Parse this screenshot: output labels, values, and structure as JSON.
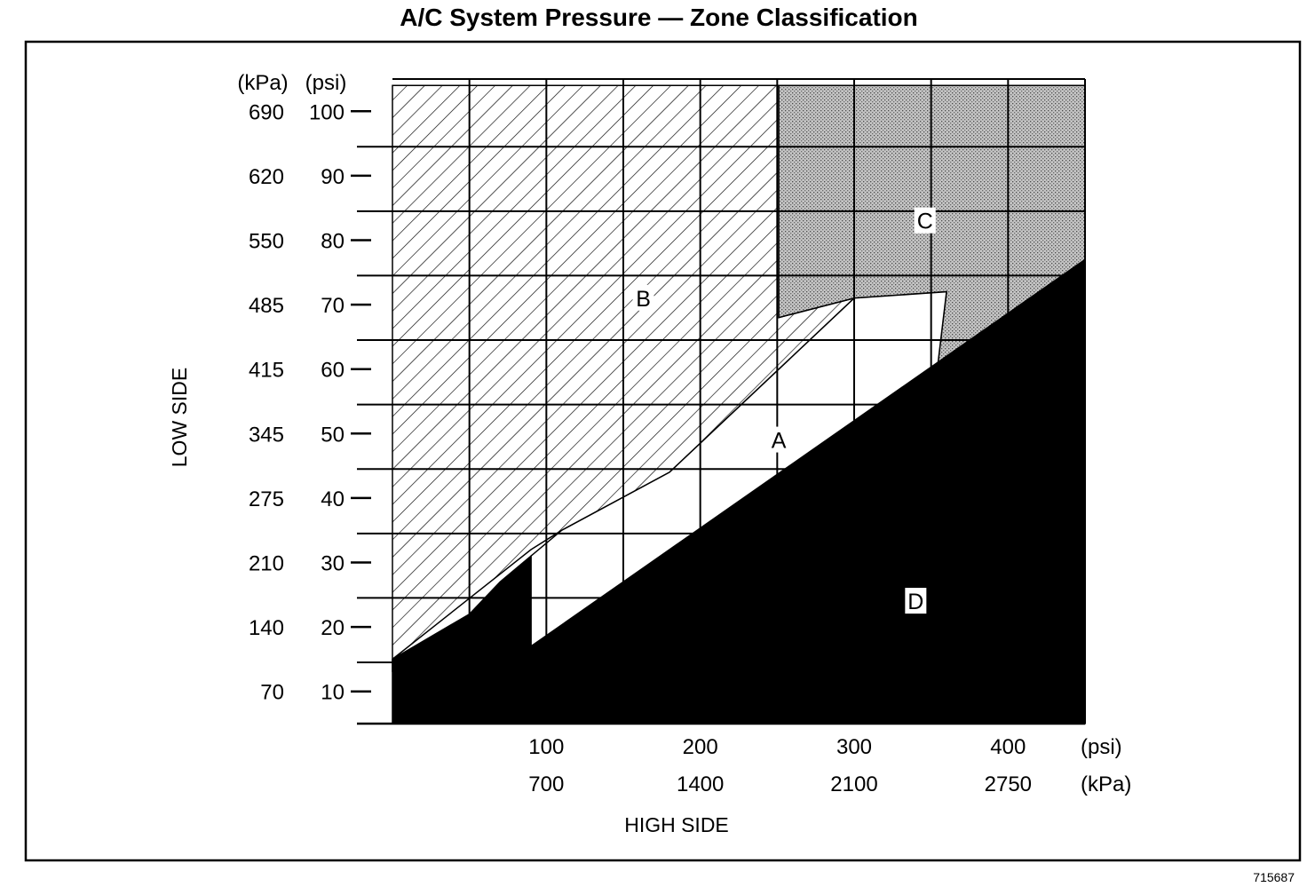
{
  "chart_data": {
    "type": "area",
    "title": "A/C System Pressure — Zone Classification",
    "xlabel": "HIGH SIDE",
    "ylabel": "LOW SIDE",
    "x_unit_primary": "(psi)",
    "x_unit_secondary": "(kPa)",
    "y_unit_primary": "(psi)",
    "y_unit_secondary": "(kPa)",
    "xlim": [
      0,
      450
    ],
    "ylim": [
      5,
      105
    ],
    "x_ticks": [
      {
        "psi": 100,
        "psi_label": "100",
        "kpa_label": "700"
      },
      {
        "psi": 200,
        "psi_label": "200",
        "kpa_label": "1400"
      },
      {
        "psi": 300,
        "psi_label": "300",
        "kpa_label": "2100"
      },
      {
        "psi": 400,
        "psi_label": "400",
        "kpa_label": "2750"
      }
    ],
    "y_ticks": [
      {
        "psi": 100,
        "psi_label": "100",
        "kpa_label": "690"
      },
      {
        "psi": 90,
        "psi_label": "90",
        "kpa_label": "620"
      },
      {
        "psi": 80,
        "psi_label": "80",
        "kpa_label": "550"
      },
      {
        "psi": 70,
        "psi_label": "70",
        "kpa_label": "485"
      },
      {
        "psi": 60,
        "psi_label": "60",
        "kpa_label": "415"
      },
      {
        "psi": 50,
        "psi_label": "50",
        "kpa_label": "345"
      },
      {
        "psi": 40,
        "psi_label": "40",
        "kpa_label": "275"
      },
      {
        "psi": 30,
        "psi_label": "30",
        "kpa_label": "210"
      },
      {
        "psi": 20,
        "psi_label": "20",
        "kpa_label": "140"
      },
      {
        "psi": 10,
        "psi_label": "10",
        "kpa_label": "70"
      }
    ],
    "grid": true,
    "grid_x": [
      50,
      100,
      150,
      200,
      250,
      300,
      350,
      400,
      450
    ],
    "grid_y": [
      14.5,
      24.5,
      34.5,
      44.5,
      54.5,
      64.5,
      74.5,
      84.5,
      94.5
    ],
    "zones": [
      {
        "label": "B",
        "fill": "hatched",
        "label_at": [
          163,
          71
        ],
        "polygon": [
          [
            0,
            13
          ],
          [
            0,
            104
          ],
          [
            251,
            104
          ],
          [
            251,
            68
          ],
          [
            300,
            71
          ],
          [
            180,
            44
          ],
          [
            110,
            35
          ],
          [
            90,
            32
          ],
          [
            0,
            15
          ]
        ]
      },
      {
        "label": "C",
        "fill": "stippled",
        "label_at": [
          346,
          83
        ],
        "polygon": [
          [
            251,
            104
          ],
          [
            450,
            104
          ],
          [
            450,
            77
          ],
          [
            352,
            56
          ],
          [
            360,
            72
          ],
          [
            300,
            71
          ],
          [
            251,
            68
          ]
        ]
      },
      {
        "label": "A",
        "fill": "white",
        "label_at": [
          251,
          49
        ],
        "polygon": [
          [
            90,
            31
          ],
          [
            90,
            17
          ],
          [
            352,
            56
          ],
          [
            360,
            72
          ],
          [
            300,
            71
          ],
          [
            180,
            44
          ],
          [
            110,
            35
          ]
        ]
      },
      {
        "label": "D",
        "fill": "black",
        "label_at": [
          340,
          24
        ],
        "polygon": [
          [
            0,
            5
          ],
          [
            450,
            5
          ],
          [
            450,
            77
          ],
          [
            90,
            17
          ],
          [
            90,
            31
          ],
          [
            70,
            27
          ],
          [
            50,
            22
          ],
          [
            0,
            15
          ]
        ]
      }
    ],
    "figure_id": "715687"
  },
  "colors": {
    "ink": "#000000",
    "paper": "#ffffff",
    "stipple": "#9a9a9a"
  }
}
